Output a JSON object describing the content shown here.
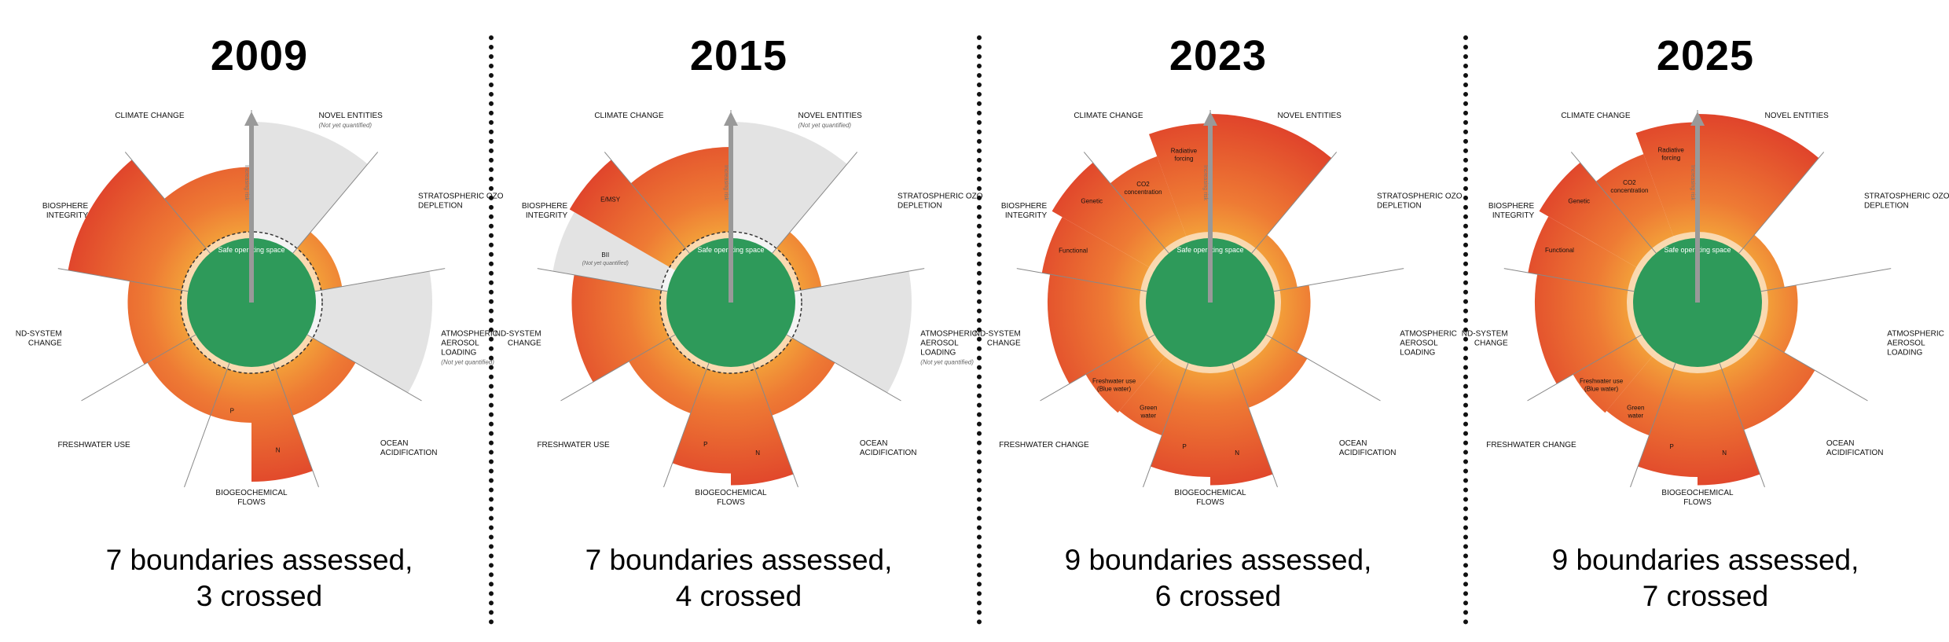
{
  "colors": {
    "safe_green": "#2e9a5a",
    "zone_orange": "#f3a43a",
    "zone_red": "#e0442b",
    "not_quantified_grey": "#d9d9d9",
    "divider": "#111111"
  },
  "segments_order": [
    "climate_change",
    "novel_entities",
    "stratospheric_ozone_depletion",
    "atmospheric_aerosol_loading",
    "ocean_acidification",
    "biogeochemical_flows",
    "freshwater",
    "land_system_change",
    "biosphere_integrity"
  ],
  "panels": [
    {
      "year": "2009",
      "caption_line1": "7 boundaries assessed,",
      "caption_line2": "3 crossed",
      "safe_label": "Safe operating space",
      "arrow_label": "Increasing risk",
      "levels": {
        "climate_change": 0.55,
        "novel_entities": null,
        "stratospheric_ozone_depletion": 0.18,
        "atmospheric_aerosol_loading": null,
        "ocean_acidification": 0.42,
        "biogeochemical_flows_P": 0.42,
        "biogeochemical_flows_N": 0.92,
        "freshwater": 0.42,
        "land_system_change": 0.45,
        "biosphere_integrity": 0.98
      },
      "labels": [
        {
          "key": "climate_change",
          "lines": [
            "CLIMATE CHANGE"
          ]
        },
        {
          "key": "novel_entities",
          "lines": [
            "NOVEL ENTITIES"
          ],
          "note": "(Not yet quantified)"
        },
        {
          "key": "stratospheric_ozone_depletion",
          "lines": [
            "STRATOSPHERIC OZONE",
            "DEPLETION"
          ]
        },
        {
          "key": "atmospheric_aerosol_loading",
          "lines": [
            "ATMOSPHERIC",
            "AEROSOL",
            "LOADING"
          ],
          "note": "(Not yet quantified)"
        },
        {
          "key": "ocean_acidification",
          "lines": [
            "OCEAN",
            "ACIDIFICATION"
          ]
        },
        {
          "key": "biogeochemical_flows",
          "lines": [
            "BIOGEOCHEMICAL",
            "FLOWS"
          ]
        },
        {
          "key": "freshwater",
          "lines": [
            "FRESHWATER USE"
          ]
        },
        {
          "key": "land_system_change",
          "lines": [
            "LAND-SYSTEM",
            "CHANGE"
          ]
        },
        {
          "key": "biosphere_integrity",
          "lines": [
            "BIOSPHERE",
            "INTEGRITY"
          ]
        }
      ],
      "sub_labels": [
        {
          "key": "biogeochemical_flows_P",
          "text": "P"
        },
        {
          "key": "biogeochemical_flows_N",
          "text": "N"
        }
      ]
    },
    {
      "year": "2015",
      "caption_line1": "7 boundaries assessed,",
      "caption_line2": "4 crossed",
      "safe_label": "Safe operating space",
      "arrow_label": "Increasing risk",
      "levels": {
        "climate_change": 0.72,
        "novel_entities": null,
        "stratospheric_ozone_depletion": 0.18,
        "atmospheric_aerosol_loading": null,
        "ocean_acidification": 0.42,
        "biogeochemical_flows_P": 0.85,
        "biogeochemical_flows_N": 0.95,
        "freshwater": 0.4,
        "land_system_change": 0.75,
        "biosphere_integrity_emsy": 0.98,
        "biosphere_integrity_bii": null
      },
      "labels": [
        {
          "key": "climate_change",
          "lines": [
            "CLIMATE CHANGE"
          ]
        },
        {
          "key": "novel_entities",
          "lines": [
            "NOVEL ENTITIES"
          ],
          "note": "(Not yet quantified)"
        },
        {
          "key": "stratospheric_ozone_depletion",
          "lines": [
            "STRATOSPHERIC OZONE",
            "DEPLETION"
          ]
        },
        {
          "key": "atmospheric_aerosol_loading",
          "lines": [
            "ATMOSPHERIC",
            "AEROSOL",
            "LOADING"
          ],
          "note": "(Not yet quantified)"
        },
        {
          "key": "ocean_acidification",
          "lines": [
            "OCEAN",
            "ACIDIFICATION"
          ]
        },
        {
          "key": "biogeochemical_flows",
          "lines": [
            "BIOGEOCHEMICAL",
            "FLOWS"
          ]
        },
        {
          "key": "freshwater",
          "lines": [
            "FRESHWATER USE"
          ]
        },
        {
          "key": "land_system_change",
          "lines": [
            "LAND-SYSTEM",
            "CHANGE"
          ]
        },
        {
          "key": "biosphere_integrity",
          "lines": [
            "BIOSPHERE",
            "INTEGRITY"
          ]
        }
      ],
      "sub_labels": [
        {
          "key": "biosphere_integrity_emsy",
          "text": "E/MSY"
        },
        {
          "key": "biosphere_integrity_bii",
          "text": "BII",
          "note": "(Not yet quantified)"
        },
        {
          "key": "biogeochemical_flows_P",
          "text": "P"
        },
        {
          "key": "biogeochemical_flows_N",
          "text": "N"
        }
      ]
    },
    {
      "year": "2023",
      "caption_line1": "9 boundaries assessed,",
      "caption_line2": "6 crossed",
      "safe_label": "Safe operating space",
      "arrow_label": "Increasing risk",
      "levels": {
        "climate_change_co2": 0.72,
        "climate_change_radiative": 0.92,
        "novel_entities": 1.0,
        "stratospheric_ozone_depletion": 0.15,
        "atmospheric_aerosol_loading": 0.25,
        "ocean_acidification": 0.35,
        "biogeochemical_flows_P": 0.88,
        "biogeochemical_flows_N": 0.95,
        "freshwater_green": 0.6,
        "freshwater_blue": 0.62,
        "land_system_change": 0.78,
        "biosphere_integrity_genetic": 0.95,
        "biosphere_integrity_functional": 0.85
      },
      "labels": [
        {
          "key": "climate_change",
          "lines": [
            "CLIMATE CHANGE"
          ]
        },
        {
          "key": "novel_entities",
          "lines": [
            "NOVEL ENTITIES"
          ]
        },
        {
          "key": "stratospheric_ozone_depletion",
          "lines": [
            "STRATOSPHERIC OZONE",
            "DEPLETION"
          ]
        },
        {
          "key": "atmospheric_aerosol_loading",
          "lines": [
            "ATMOSPHERIC",
            "AEROSOL",
            "LOADING"
          ]
        },
        {
          "key": "ocean_acidification",
          "lines": [
            "OCEAN",
            "ACIDIFICATION"
          ]
        },
        {
          "key": "biogeochemical_flows",
          "lines": [
            "BIOGEOCHEMICAL",
            "FLOWS"
          ]
        },
        {
          "key": "freshwater",
          "lines": [
            "FRESHWATER CHANGE"
          ]
        },
        {
          "key": "land_system_change",
          "lines": [
            "LAND-SYSTEM",
            "CHANGE"
          ]
        },
        {
          "key": "biosphere_integrity",
          "lines": [
            "BIOSPHERE",
            "INTEGRITY"
          ]
        }
      ],
      "sub_labels": [
        {
          "key": "climate_change_co2",
          "lines": [
            "CO2",
            "concentration"
          ]
        },
        {
          "key": "climate_change_radiative",
          "lines": [
            "Radiative",
            "forcing"
          ]
        },
        {
          "key": "biosphere_integrity_genetic",
          "text": "Genetic"
        },
        {
          "key": "biosphere_integrity_functional",
          "text": "Functional"
        },
        {
          "key": "freshwater_blue",
          "lines": [
            "Freshwater use",
            "(Blue water)"
          ]
        },
        {
          "key": "freshwater_green",
          "lines": [
            "Green",
            "water"
          ]
        },
        {
          "key": "biogeochemical_flows_P",
          "text": "P"
        },
        {
          "key": "biogeochemical_flows_N",
          "text": "N"
        }
      ]
    },
    {
      "year": "2025",
      "caption_line1": "9 boundaries assessed,",
      "caption_line2": "7 crossed",
      "safe_label": "Safe operating space",
      "arrow_label": "Increasing risk",
      "levels": {
        "climate_change_co2": 0.74,
        "climate_change_radiative": 0.93,
        "novel_entities": 1.0,
        "stratospheric_ozone_depletion": 0.15,
        "atmospheric_aerosol_loading": 0.25,
        "ocean_acidification": 0.55,
        "biogeochemical_flows_P": 0.88,
        "biogeochemical_flows_N": 0.95,
        "freshwater_green": 0.6,
        "freshwater_blue": 0.62,
        "land_system_change": 0.78,
        "biosphere_integrity_genetic": 0.95,
        "biosphere_integrity_functional": 0.86
      },
      "labels": [
        {
          "key": "climate_change",
          "lines": [
            "CLIMATE CHANGE"
          ]
        },
        {
          "key": "novel_entities",
          "lines": [
            "NOVEL ENTITIES"
          ]
        },
        {
          "key": "stratospheric_ozone_depletion",
          "lines": [
            "STRATOSPHERIC OZONE",
            "DEPLETION"
          ]
        },
        {
          "key": "atmospheric_aerosol_loading",
          "lines": [
            "ATMOSPHERIC",
            "AEROSOL",
            "LOADING"
          ]
        },
        {
          "key": "ocean_acidification",
          "lines": [
            "OCEAN",
            "ACIDIFICATION"
          ]
        },
        {
          "key": "biogeochemical_flows",
          "lines": [
            "BIOGEOCHEMICAL",
            "FLOWS"
          ]
        },
        {
          "key": "freshwater",
          "lines": [
            "FRESHWATER CHANGE"
          ]
        },
        {
          "key": "land_system_change",
          "lines": [
            "LAND-SYSTEM",
            "CHANGE"
          ]
        },
        {
          "key": "biosphere_integrity",
          "lines": [
            "BIOSPHERE",
            "INTEGRITY"
          ]
        }
      ],
      "sub_labels": [
        {
          "key": "climate_change_co2",
          "lines": [
            "CO2",
            "concentration"
          ]
        },
        {
          "key": "climate_change_radiative",
          "lines": [
            "Radiative",
            "forcing"
          ]
        },
        {
          "key": "biosphere_integrity_genetic",
          "text": "Genetic"
        },
        {
          "key": "biosphere_integrity_functional",
          "text": "Functional"
        },
        {
          "key": "freshwater_blue",
          "lines": [
            "Freshwater use",
            "(Blue water)"
          ]
        },
        {
          "key": "freshwater_green",
          "lines": [
            "Green",
            "water"
          ]
        },
        {
          "key": "biogeochemical_flows_P",
          "text": "P"
        },
        {
          "key": "biogeochemical_flows_N",
          "text": "N"
        }
      ]
    }
  ]
}
